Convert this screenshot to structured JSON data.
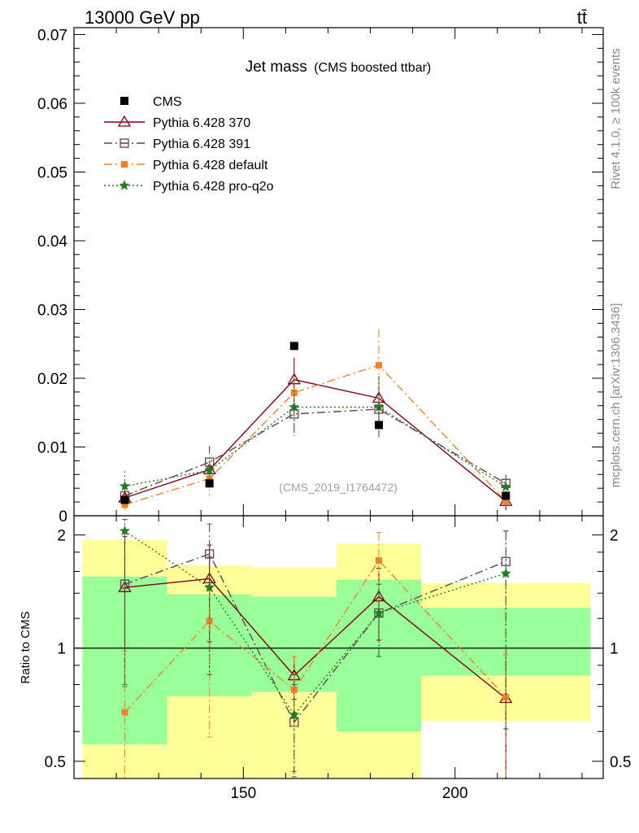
{
  "header": {
    "process": "13000 GeV pp",
    "final_state": "tt̄"
  },
  "side_labels": {
    "rivet": "Rivet 4.1.0, ≥ 100k events",
    "source": "mcplots.cern.ch [arXiv:1306.3436]"
  },
  "colors": {
    "CMS": "#000000",
    "p370": "#800014",
    "p391": "#6a3d52",
    "pdefault": "#f5822a",
    "pq2o": "#1e7d1e",
    "band_inner": "#99ff99",
    "band_outer": "#ffff99"
  },
  "chart_data": [
    {
      "type": "scatter",
      "title": "Jet mass",
      "subtitle": "(CMS boosted ttbar)",
      "watermark": "(CMS_2019_I1764472)",
      "xlabel": "",
      "ylabel": "",
      "xlim": [
        110,
        235
      ],
      "ylim": [
        0,
        0.071
      ],
      "ytick_labels": [
        "0",
        "0.01",
        "0.02",
        "0.03",
        "0.04",
        "0.05",
        "0.06",
        "0.07"
      ],
      "ytick_values": [
        0,
        0.01,
        0.02,
        0.03,
        0.04,
        0.05,
        0.06,
        0.07
      ],
      "x": [
        122,
        142,
        162,
        182,
        212
      ],
      "bin_edges": [
        112,
        132,
        152,
        172,
        192,
        232
      ],
      "series": [
        {
          "key": "CMS",
          "name": "CMS",
          "style": "data",
          "values": [
            0.0023,
            0.0047,
            0.0247,
            0.0132,
            0.0029
          ]
        },
        {
          "key": "p370",
          "name": "Pythia 6.428 370",
          "style": "solid",
          "marker": "triangle-open",
          "values": [
            0.0026,
            0.0067,
            0.0198,
            0.0171,
            0.0021
          ],
          "errors": [
            0.0015,
            0.0013,
            0.0032,
            0.0032,
            0.0013
          ]
        },
        {
          "key": "p391",
          "name": "Pythia 6.428 391",
          "style": "dashdot",
          "marker": "square-open",
          "values": [
            0.0029,
            0.0078,
            0.0148,
            0.0155,
            0.0047
          ],
          "errors": [
            0.0013,
            0.0024,
            0.0032,
            0.0041,
            0.0012
          ]
        },
        {
          "key": "pdefault",
          "name": "Pythia 6.428 default",
          "style": "dashdot",
          "marker": "square-filled",
          "values": [
            0.0016,
            0.0054,
            0.0179,
            0.0219,
            0.0021
          ],
          "errors": [
            0.0011,
            0.0025,
            0.0025,
            0.0052,
            0.0012
          ]
        },
        {
          "key": "pq2o",
          "name": "Pythia 6.428 pro-q2o",
          "style": "dotted",
          "marker": "star",
          "values": [
            0.0043,
            0.0066,
            0.0158,
            0.0158,
            0.0042
          ],
          "errors": [
            0.0022,
            0.0019,
            0.0042,
            0.0042,
            0.0018
          ]
        }
      ]
    },
    {
      "type": "scatter",
      "title": "",
      "xlabel": "",
      "ylabel": "Ratio to CMS",
      "scale": "log",
      "xlim": [
        110,
        235
      ],
      "ylim": [
        0.45,
        2.25
      ],
      "xtick_labels": [
        "150",
        "200"
      ],
      "xtick_values": [
        150,
        200
      ],
      "ytick_labels": [
        "0.5",
        "1",
        "2"
      ],
      "ytick_values": [
        0.5,
        1,
        2
      ],
      "bands": [
        {
          "x0": 112,
          "x1": 132,
          "inner": [
            0.555,
            1.55
          ],
          "outer": [
            0.4,
            1.94
          ]
        },
        {
          "x0": 132,
          "x1": 152,
          "inner": [
            0.745,
            1.39
          ],
          "outer": [
            0.4,
            1.66
          ]
        },
        {
          "x0": 152,
          "x1": 172,
          "inner": [
            0.765,
            1.37
          ],
          "outer": [
            0.425,
            1.64
          ]
        },
        {
          "x0": 172,
          "x1": 192,
          "inner": [
            0.6,
            1.52
          ],
          "outer": [
            0.4,
            1.9
          ]
        },
        {
          "x0": 192,
          "x1": 232,
          "inner": [
            0.845,
            1.28
          ],
          "outer": [
            0.64,
            1.49
          ]
        }
      ],
      "series": [
        {
          "key": "p370",
          "values": [
            1.45,
            1.53,
            0.845,
            1.37,
            0.735
          ],
          "err_hi": [
            1.98,
            1.88,
            0.95,
            1.63,
            0.96
          ],
          "err_lo": [
            0.8,
            1.04,
            0.73,
            1.05,
            0.36
          ]
        },
        {
          "key": "p391",
          "values": [
            1.48,
            1.78,
            0.635,
            1.24,
            1.7
          ],
          "err_hi": [
            2.02,
            2.14,
            0.8,
            1.48,
            2.05
          ],
          "err_lo": [
            0.79,
            0.85,
            0.455,
            0.95,
            0.61
          ]
        },
        {
          "key": "pdefault",
          "values": [
            0.675,
            1.18,
            0.775,
            1.71,
            0.74
          ],
          "err_hi": [
            0.98,
            1.42,
            0.95,
            2.03,
            0.96
          ],
          "err_lo": [
            0.42,
            0.58,
            0.62,
            1.33,
            0.38
          ]
        },
        {
          "key": "pq2o",
          "values": [
            2.05,
            1.45,
            0.665,
            1.24,
            1.58
          ],
          "err_hi": [
            2.2,
            1.75,
            0.8,
            1.48,
            2.05
          ],
          "err_lo": [
            0.8,
            0.85,
            0.47,
            0.95,
            0.61
          ]
        }
      ]
    }
  ]
}
